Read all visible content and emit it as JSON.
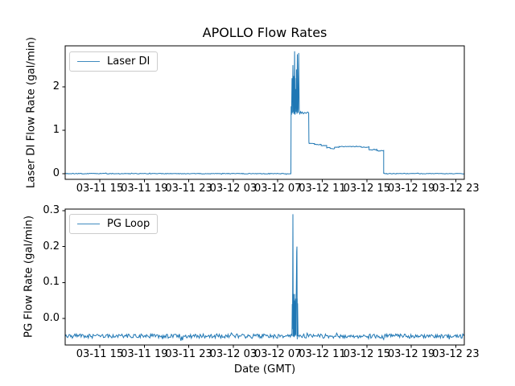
{
  "window": {
    "background": "#ffffff"
  },
  "colors": {
    "line": "#1f77b4",
    "spine": "#000000",
    "text": "#000000",
    "legend_border": "#cccccc"
  },
  "chart_data": [
    {
      "type": "line",
      "title": "APOLLO Flow Rates",
      "ylabel": "Laser DI Flow Rate (gal/min)",
      "xlabel": "",
      "xlim_hours": [
        -3.11,
        32.77
      ],
      "ylim": [
        -0.13,
        2.94
      ],
      "grid": false,
      "x_tick_hours": [
        0,
        4,
        8,
        12,
        16,
        20,
        24,
        28,
        32
      ],
      "x_tick_labels": [
        "03-11 15",
        "03-11 19",
        "03-11 23",
        "03-12 03",
        "03-12 07",
        "03-12 11",
        "03-12 15",
        "03-12 19",
        "03-12 23"
      ],
      "y_ticks": [
        {
          "value": 0,
          "label": "0"
        },
        {
          "value": 1,
          "label": "1"
        },
        {
          "value": 2,
          "label": "2"
        }
      ],
      "legend": {
        "position": "upper left",
        "entries": [
          "Laser DI"
        ]
      },
      "series": [
        {
          "name": "Laser DI",
          "color": "#1f77b4",
          "summary": "Flat at 0 gal/min until ~03-12 07:20, spiky burst oscillating 1.35-2.82 until ~08:00, plateau ~1.4 until ~08:50, step to ~0.70 declining to ~0.62 with dip to ~0.58 near 03-12 12, step to ~0.55 at ~03-12 15:10, drops to 0 at ~03-12 16:30, flat 0 to end",
          "segments": [
            {
              "kind": "noisy",
              "from": -3.11,
              "to": 17.18,
              "value": 0.002,
              "amp": 0.008
            },
            {
              "kind": "path",
              "points": [
                [
                  17.18,
                  0.01
                ],
                [
                  17.2,
                  1.55
                ],
                [
                  17.24,
                  1.36
                ],
                [
                  17.28,
                  2.2
                ],
                [
                  17.31,
                  1.4
                ],
                [
                  17.36,
                  2.5
                ],
                [
                  17.4,
                  1.42
                ],
                [
                  17.44,
                  2.25
                ],
                [
                  17.47,
                  1.38
                ],
                [
                  17.51,
                  2.82
                ],
                [
                  17.55,
                  1.36
                ],
                [
                  17.6,
                  1.95
                ],
                [
                  17.64,
                  1.42
                ],
                [
                  17.68,
                  2.4
                ],
                [
                  17.72,
                  1.38
                ],
                [
                  17.76,
                  2.75
                ],
                [
                  17.8,
                  1.4
                ],
                [
                  17.84,
                  1.5
                ],
                [
                  17.88,
                  2.78
                ],
                [
                  17.93,
                  1.42
                ],
                [
                  17.98,
                  1.38
                ],
                [
                  18.05,
                  1.43
                ],
                [
                  18.12,
                  1.39
                ],
                [
                  18.2,
                  1.42
                ],
                [
                  18.3,
                  1.38
                ],
                [
                  18.42,
                  1.41
                ],
                [
                  18.55,
                  1.39
                ],
                [
                  18.68,
                  1.42
                ],
                [
                  18.78,
                  1.4
                ],
                [
                  18.8,
                  0.72
                ]
              ]
            },
            {
              "kind": "noisy",
              "from": 18.82,
              "to": 19.3,
              "value": 0.7,
              "amp": 0.007
            },
            {
              "kind": "noisy",
              "from": 19.3,
              "to": 19.9,
              "value": 0.672,
              "amp": 0.007
            },
            {
              "kind": "noisy",
              "from": 19.9,
              "to": 20.4,
              "value": 0.648,
              "amp": 0.007
            },
            {
              "kind": "noisy",
              "from": 20.4,
              "to": 20.7,
              "value": 0.6,
              "amp": 0.007
            },
            {
              "kind": "noisy",
              "from": 20.7,
              "to": 21.1,
              "value": 0.578,
              "amp": 0.007
            },
            {
              "kind": "noisy",
              "from": 21.1,
              "to": 21.5,
              "value": 0.612,
              "amp": 0.007
            },
            {
              "kind": "noisy",
              "from": 21.5,
              "to": 23.5,
              "value": 0.625,
              "amp": 0.007
            },
            {
              "kind": "noisy",
              "from": 23.5,
              "to": 24.2,
              "value": 0.613,
              "amp": 0.007
            },
            {
              "kind": "noisy",
              "from": 24.2,
              "to": 24.9,
              "value": 0.556,
              "amp": 0.009
            },
            {
              "kind": "noisy",
              "from": 24.9,
              "to": 25.52,
              "value": 0.53,
              "amp": 0.009
            },
            {
              "kind": "path",
              "points": [
                [
                  25.52,
                  0.52
                ],
                [
                  25.52,
                  0.002
                ]
              ]
            },
            {
              "kind": "noisy",
              "from": 25.54,
              "to": 32.77,
              "value": 0.002,
              "amp": 0.007
            }
          ],
          "bands": [
            {
              "from": 17.34,
              "to": 17.62,
              "top": 2.2,
              "bottom": 1.38,
              "alpha": 0.45
            }
          ]
        }
      ]
    },
    {
      "type": "line",
      "title": "",
      "ylabel": "PG Flow Rate (gal/min)",
      "xlabel": "Date (GMT)",
      "xlim_hours": [
        -3.11,
        32.77
      ],
      "ylim": [
        -0.074,
        0.304
      ],
      "grid": false,
      "x_tick_hours": [
        0,
        4,
        8,
        12,
        16,
        20,
        24,
        28,
        32
      ],
      "x_tick_labels": [
        "03-11 15",
        "03-11 19",
        "03-11 23",
        "03-12 03",
        "03-12 07",
        "03-12 11",
        "03-12 15",
        "03-12 19",
        "03-12 23"
      ],
      "y_ticks": [
        {
          "value": 0.0,
          "label": "0.0"
        },
        {
          "value": 0.1,
          "label": "0.1"
        },
        {
          "value": 0.2,
          "label": "0.2"
        },
        {
          "value": 0.3,
          "label": "0.3"
        }
      ],
      "legend": {
        "position": "upper left",
        "entries": [
          "PG Loop"
        ]
      },
      "series": [
        {
          "name": "PG Loop",
          "color": "#1f77b4",
          "summary": "Noisy baseline at about -0.049 gal/min across full range, with a burst near 03-12 07:20-07:50: spike to 0.29 then spike to 0.20, then back to baseline",
          "segments": [
            {
              "kind": "noisy",
              "from": -3.11,
              "to": 17.27,
              "value": -0.049,
              "amp": 0.006
            },
            {
              "kind": "path",
              "points": [
                [
                  17.27,
                  -0.049
                ],
                [
                  17.3,
                  0.04
                ],
                [
                  17.32,
                  -0.03
                ],
                [
                  17.34,
                  0.072
                ],
                [
                  17.36,
                  0.29
                ],
                [
                  17.38,
                  0.04
                ],
                [
                  17.4,
                  -0.05
                ],
                [
                  17.43,
                  0.068
                ],
                [
                  17.46,
                  -0.052
                ],
                [
                  17.5,
                  0.05
                ],
                [
                  17.54,
                  -0.048
                ],
                [
                  17.58,
                  0.055
                ],
                [
                  17.62,
                  -0.046
                ],
                [
                  17.66,
                  0.05
                ],
                [
                  17.7,
                  0.185
                ],
                [
                  17.72,
                  0.2
                ],
                [
                  17.75,
                  -0.058
                ],
                [
                  17.78,
                  0.042
                ],
                [
                  17.82,
                  -0.049
                ]
              ]
            },
            {
              "kind": "noisy",
              "from": 17.84,
              "to": 32.77,
              "value": -0.049,
              "amp": 0.006
            }
          ],
          "bands": [
            {
              "from": 17.3,
              "to": 17.6,
              "top": 0.068,
              "bottom": -0.05,
              "alpha": 0.45
            },
            {
              "from": 17.64,
              "to": 17.8,
              "top": 0.055,
              "bottom": -0.05,
              "alpha": 0.45
            }
          ]
        }
      ]
    }
  ]
}
